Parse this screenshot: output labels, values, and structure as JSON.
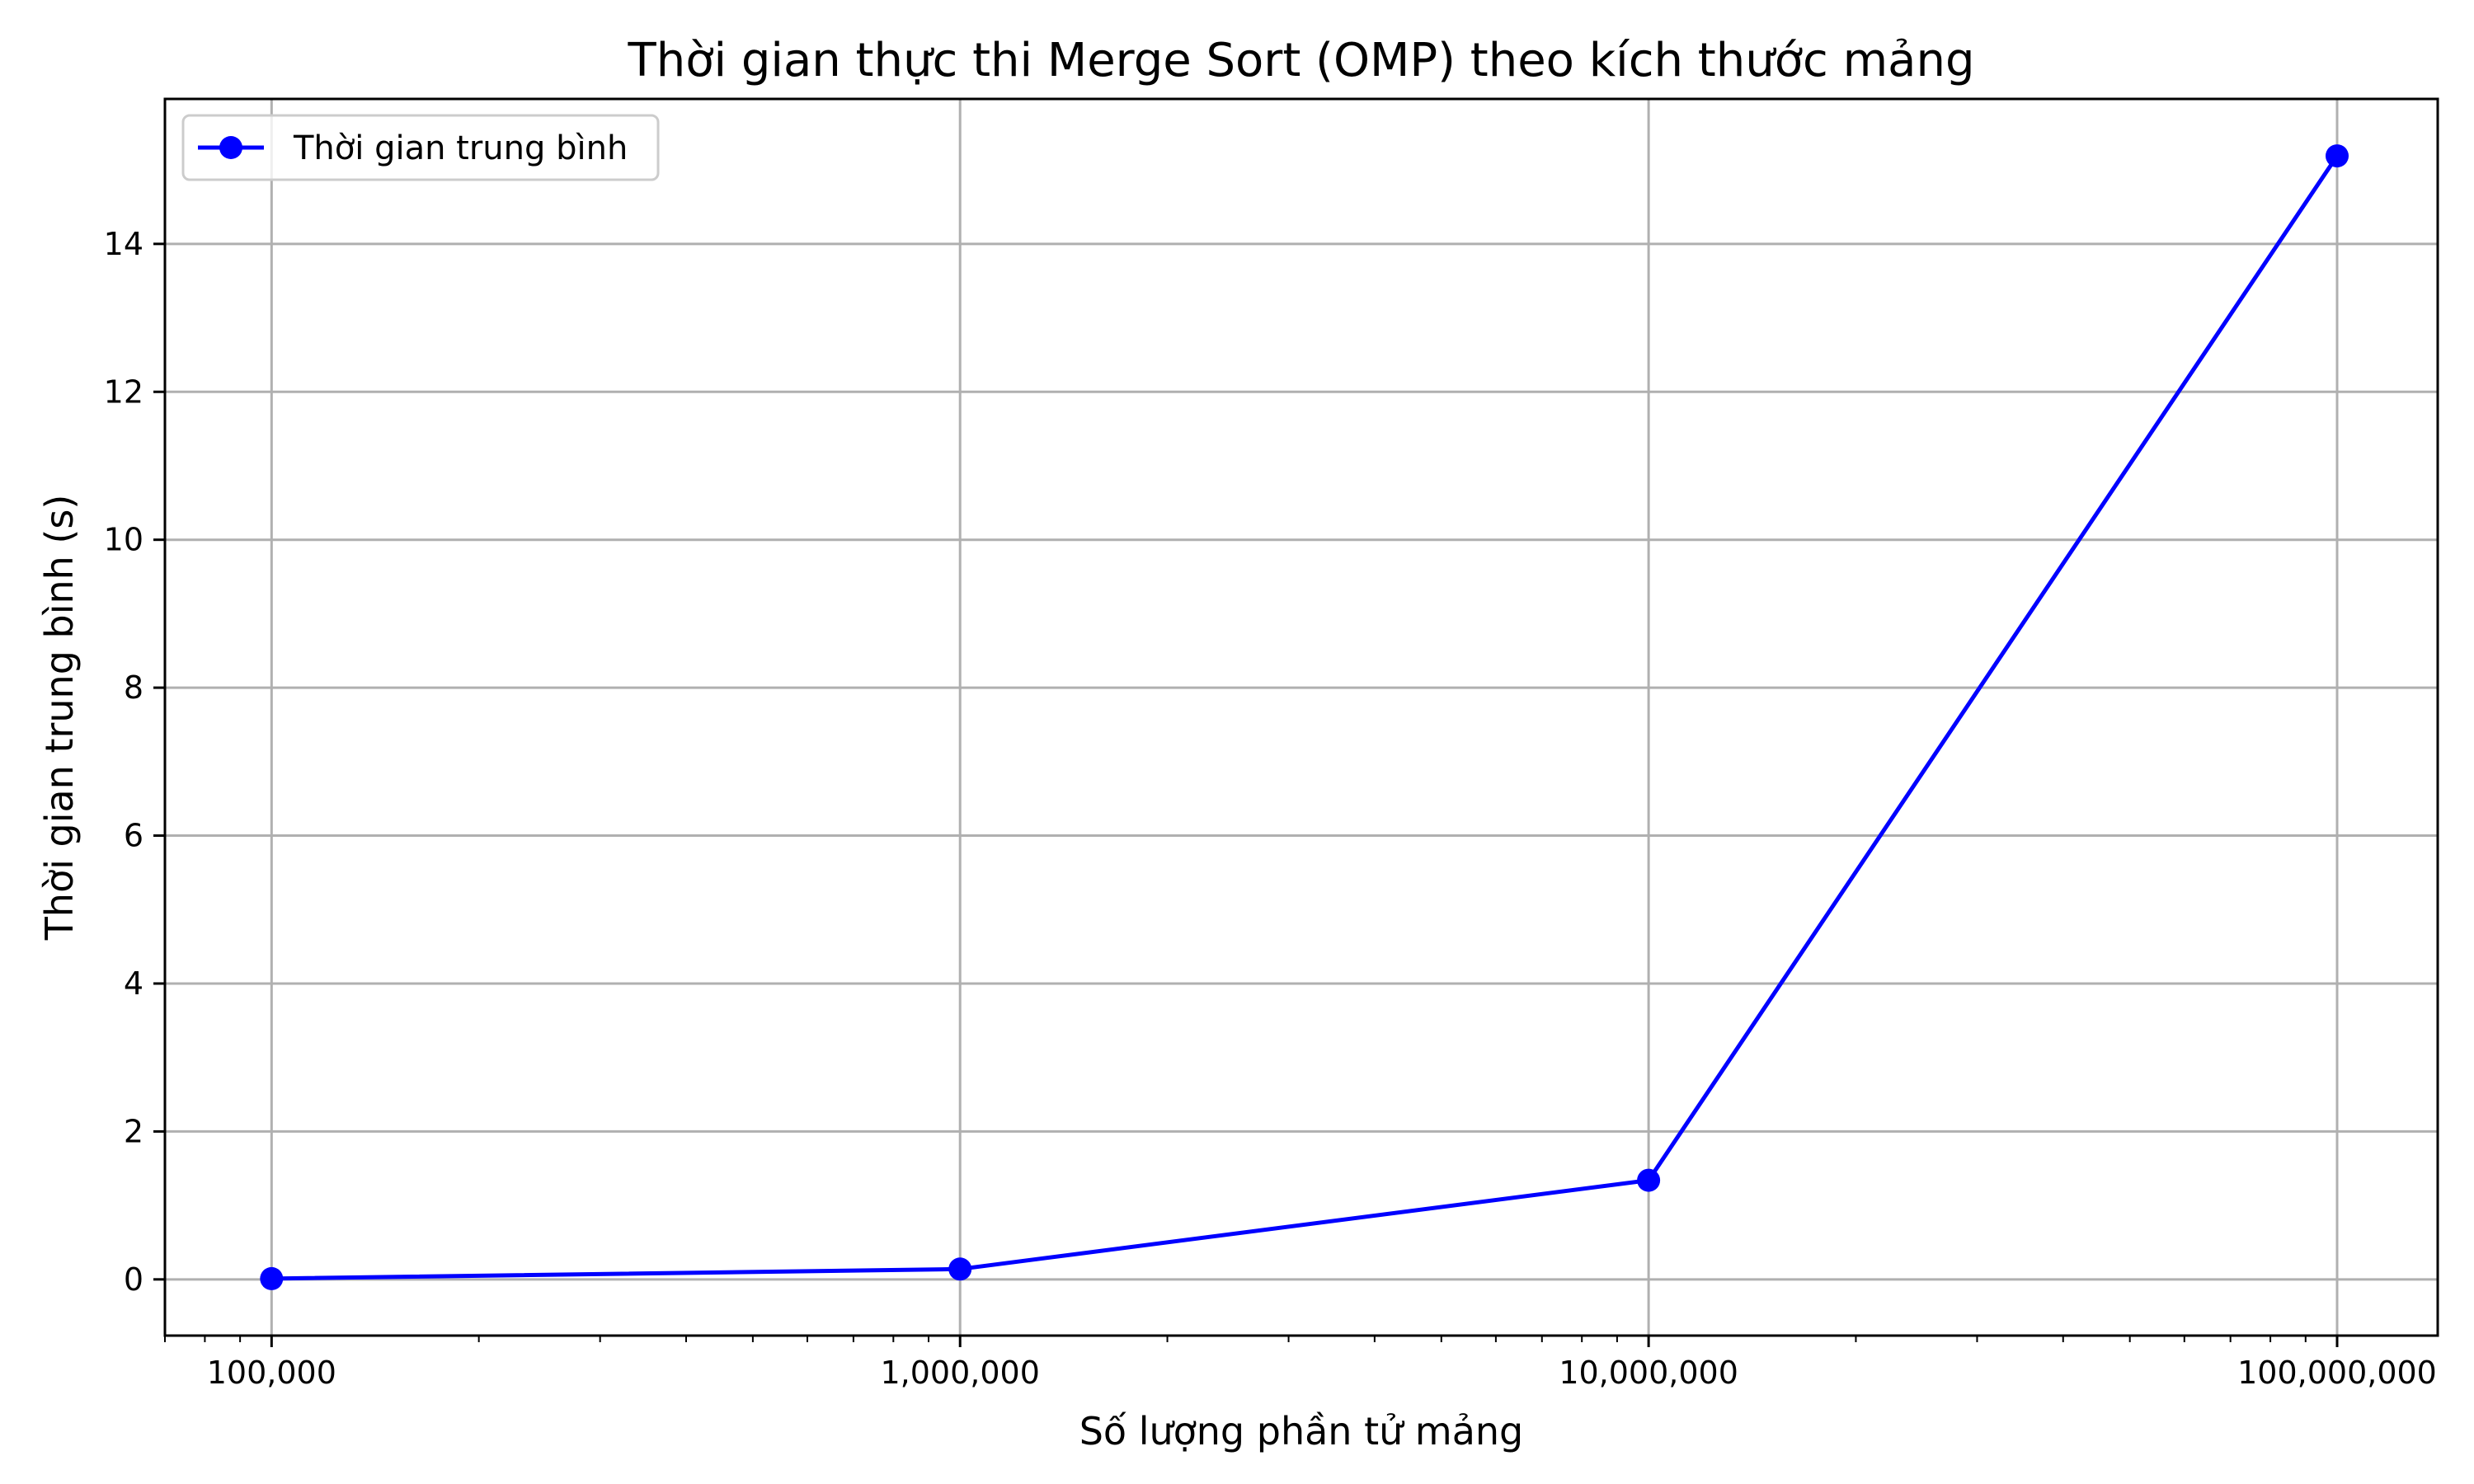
{
  "chart_data": {
    "type": "line",
    "title": "Thời gian thực thi Merge Sort (OMP) theo kích thước mảng",
    "xlabel": "Số lượng phần tử mảng",
    "ylabel": "Thời gian trung bình (s)",
    "x_scale": "log",
    "xlim": [
      70000,
      140000000
    ],
    "ylim": [
      -0.76,
      15.96
    ],
    "x_ticks": [
      100000,
      1000000,
      10000000,
      100000000
    ],
    "x_tick_labels": [
      "100,000",
      "1,000,000",
      "10,000,000",
      "100,000,000"
    ],
    "y_ticks": [
      0,
      2,
      4,
      6,
      8,
      10,
      12,
      14
    ],
    "y_tick_labels": [
      "0",
      "2",
      "4",
      "6",
      "8",
      "10",
      "12",
      "14"
    ],
    "grid": true,
    "legend_position": "top-left",
    "series": [
      {
        "name": "Thời gian trung bình",
        "color": "#0000ff",
        "marker": "circle",
        "x": [
          100000,
          1000000,
          10000000,
          100000000
        ],
        "y": [
          0.01,
          0.14,
          1.34,
          15.19
        ]
      }
    ]
  }
}
